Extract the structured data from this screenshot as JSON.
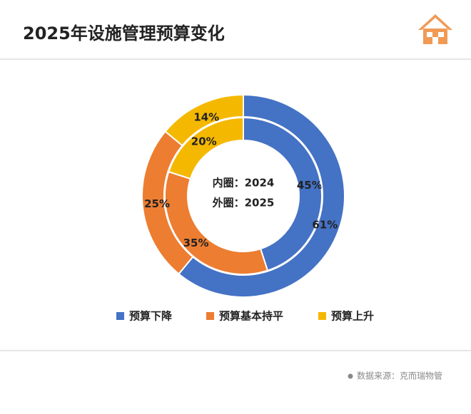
{
  "chart_data": {
    "type": "donut",
    "title": "2025年设施管理预算变化",
    "categories": [
      "预算下降",
      "预算基本持平",
      "预算上升"
    ],
    "colors": [
      "#4472c4",
      "#ed7d31",
      "#f5b800"
    ],
    "series": [
      {
        "name": "内圈：2024",
        "values": [
          45,
          35,
          20
        ],
        "value_labels": [
          "45%",
          "35%",
          "20%"
        ]
      },
      {
        "name": "外圈：2025",
        "values": [
          61,
          25,
          14
        ],
        "value_labels": [
          "61%",
          "25%",
          "14%"
        ]
      }
    ],
    "source": "数据来源：克而瑞物管"
  }
}
